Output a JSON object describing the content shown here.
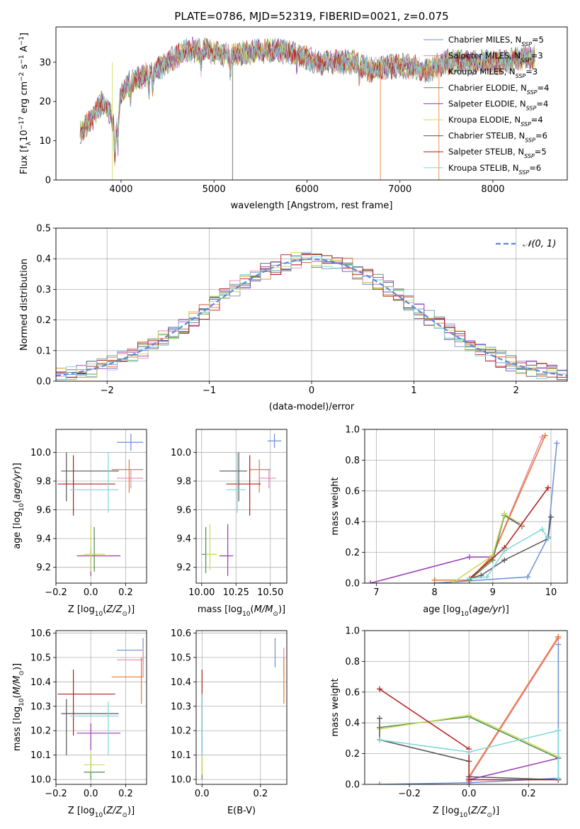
{
  "colors": {
    "Chabrier MILES": "#6a8fd8",
    "Salpeter MILES": "#e48ab0",
    "Kroupa MILES": "#e8772e",
    "Chabrier ELODIE": "#4d8a4d",
    "Salpeter ELODIE": "#9a3ab5",
    "Kroupa ELODIE": "#c7dd55",
    "Chabrier STELIB": "#555555",
    "Salpeter STELIB": "#b31b1b",
    "Kroupa STELIB": "#7fd7d7",
    "normal": "#5b8bd8"
  },
  "chart_data": [
    {
      "id": "spectrum",
      "type": "line",
      "title": "PLATE=0786, MJD=52319, FIBERID=0021, z=0.075",
      "xlabel": "wavelength [Angstrom, rest frame]",
      "ylabel": "Flux [fλ10⁻¹⁷ erg cm⁻² s⁻¹ A⁻¹]",
      "xlim": [
        3300,
        8800
      ],
      "ylim": [
        0,
        39
      ],
      "xticks": [
        "4000",
        "5000",
        "6000",
        "7000",
        "8000"
      ],
      "yticks": [
        "0",
        "10",
        "20",
        "30"
      ],
      "legend": "upper right",
      "series": [
        {
          "name": "Chabrier MILES, Nₛₛₚ=5",
          "label_main": "Chabrier MILES, N",
          "label_sub": "SSP",
          "label_end": "=5"
        },
        {
          "name": "Salpeter MILES, Nₛₛₚ=3",
          "label_main": "Salpeter MILES, N",
          "label_sub": "SSP",
          "label_end": "=3"
        },
        {
          "name": "Kroupa MILES, Nₛₛₚ=3",
          "label_main": "Kroupa MILES, N",
          "label_sub": "SSP",
          "label_end": "=3"
        },
        {
          "name": "Chabrier ELODIE, Nₛₛₚ=4",
          "label_main": "Chabrier ELODIE, N",
          "label_sub": "SSP",
          "label_end": "=4"
        },
        {
          "name": "Salpeter ELODIE, Nₛₛₚ=4",
          "label_main": "Salpeter ELODIE, N",
          "label_sub": "SSP",
          "label_end": "=4"
        },
        {
          "name": "Kroupa ELODIE, Nₛₛₚ=4",
          "label_main": "Kroupa ELODIE, N",
          "label_sub": "SSP",
          "label_end": "=4"
        },
        {
          "name": "Chabrier STELIB, Nₛₛₚ=6",
          "label_main": "Chabrier STELIB, N",
          "label_sub": "SSP",
          "label_end": "=6"
        },
        {
          "name": "Salpeter STELIB, Nₛₛₚ=5",
          "label_main": "Salpeter STELIB, N",
          "label_sub": "SSP",
          "label_end": "=5"
        },
        {
          "name": "Kroupa STELIB, Nₛₛₚ=6",
          "label_main": "Kroupa STELIB, N",
          "label_sub": "SSP",
          "label_end": "=6"
        }
      ],
      "shape": [
        [
          3560,
          12
        ],
        [
          3700,
          16
        ],
        [
          3800,
          20
        ],
        [
          3900,
          16
        ],
        [
          3950,
          12
        ],
        [
          4000,
          22
        ],
        [
          4100,
          25
        ],
        [
          4300,
          27
        ],
        [
          4500,
          30
        ],
        [
          4700,
          33
        ],
        [
          4900,
          33
        ],
        [
          5100,
          32
        ],
        [
          5300,
          32
        ],
        [
          5500,
          33
        ],
        [
          5700,
          33
        ],
        [
          5900,
          32
        ],
        [
          6100,
          30
        ],
        [
          6300,
          30
        ],
        [
          6500,
          30
        ],
        [
          6700,
          28
        ],
        [
          6900,
          29
        ],
        [
          7100,
          29
        ],
        [
          7300,
          28
        ],
        [
          7500,
          30
        ],
        [
          7700,
          30
        ],
        [
          7900,
          30
        ],
        [
          8100,
          30
        ],
        [
          8300,
          31
        ],
        [
          8450,
          31
        ]
      ]
    },
    {
      "id": "residuals",
      "type": "histogram",
      "xlabel": "(data-model)/error",
      "ylabel": "Normed distribution",
      "xlim": [
        -2.5,
        2.5
      ],
      "ylim": [
        0,
        0.5
      ],
      "xticks": [
        "−2",
        "−1",
        "0",
        "1",
        "2"
      ],
      "yticks": [
        "0.0",
        "0.1",
        "0.2",
        "0.3",
        "0.4",
        "0.5"
      ],
      "bin_width": 0.1,
      "legend": "upper right",
      "reference": {
        "name": "𝒩(0, 1)",
        "style": "dashed"
      },
      "series_count": 9
    },
    {
      "id": "z-age",
      "type": "errorbar",
      "xlabel": "Z [log₁₀(Z/Z⊙)]",
      "ylabel": "age  [log₁₀(age/yr)]",
      "xlim": [
        -0.2,
        0.32
      ],
      "ylim": [
        9.09,
        10.16
      ],
      "xticks": [
        "−0.2",
        "0.0",
        "0.2"
      ],
      "yticks": [
        "9.2",
        "9.4",
        "9.6",
        "9.8",
        "10.0"
      ],
      "points": [
        {
          "series": "Chabrier MILES",
          "x": 0.23,
          "xlo": 0.15,
          "xhi": 0.3,
          "y": 10.07,
          "ylo": 10.01,
          "yhi": 10.13
        },
        {
          "series": "Salpeter MILES",
          "x": 0.23,
          "xlo": 0.15,
          "xhi": 0.3,
          "y": 9.82,
          "ylo": 9.75,
          "yhi": 9.88
        },
        {
          "series": "Kroupa MILES",
          "x": 0.22,
          "xlo": 0.12,
          "xhi": 0.3,
          "y": 9.88,
          "ylo": 9.72,
          "yhi": 9.95
        },
        {
          "series": "Chabrier ELODIE",
          "x": 0.02,
          "xlo": -0.03,
          "xhi": 0.08,
          "y": 9.29,
          "ylo": 9.17,
          "yhi": 9.48
        },
        {
          "series": "Salpeter ELODIE",
          "x": 0.0,
          "xlo": -0.08,
          "xhi": 0.17,
          "y": 9.28,
          "ylo": 9.14,
          "yhi": 9.34
        },
        {
          "series": "Kroupa ELODIE",
          "x": 0.0,
          "xlo": -0.04,
          "xhi": 0.08,
          "y": 9.29,
          "ylo": 9.17,
          "yhi": 9.49
        },
        {
          "series": "Chabrier STELIB",
          "x": -0.14,
          "xlo": -0.17,
          "xhi": 0.16,
          "y": 9.87,
          "ylo": 9.66,
          "yhi": 10.0
        },
        {
          "series": "Salpeter STELIB",
          "x": -0.1,
          "xlo": -0.19,
          "xhi": 0.14,
          "y": 9.78,
          "ylo": 9.56,
          "yhi": 9.98
        },
        {
          "series": "Kroupa STELIB",
          "x": 0.1,
          "xlo": -0.12,
          "xhi": 0.16,
          "y": 9.74,
          "ylo": 9.58,
          "yhi": 10.0
        }
      ]
    },
    {
      "id": "mass-age",
      "type": "errorbar",
      "xlabel": "mass [log₁₀(M/M⊙)]",
      "xlim": [
        9.96,
        10.62
      ],
      "ylim": [
        9.09,
        10.16
      ],
      "xticks": [
        "10.00",
        "10.25",
        "10.50"
      ],
      "yticks": [
        "9.2",
        "9.4",
        "9.6",
        "9.8",
        "10.0"
      ],
      "points": [
        {
          "series": "Chabrier MILES",
          "x": 10.53,
          "xlo": 10.48,
          "xhi": 10.58,
          "y": 10.08,
          "ylo": 10.03,
          "yhi": 10.13
        },
        {
          "series": "Salpeter MILES",
          "x": 10.49,
          "xlo": 10.42,
          "xhi": 10.54,
          "y": 9.82,
          "ylo": 9.75,
          "yhi": 9.88
        },
        {
          "series": "Kroupa MILES",
          "x": 10.42,
          "xlo": 10.35,
          "xhi": 10.5,
          "y": 9.88,
          "ylo": 9.72,
          "yhi": 9.95
        },
        {
          "series": "Chabrier ELODIE",
          "x": 10.03,
          "xlo": 10.0,
          "xhi": 10.1,
          "y": 9.29,
          "ylo": 9.16,
          "yhi": 9.48
        },
        {
          "series": "Salpeter ELODIE",
          "x": 10.19,
          "xlo": 10.13,
          "xhi": 10.23,
          "y": 9.28,
          "ylo": 9.14,
          "yhi": 9.5
        },
        {
          "series": "Kroupa ELODIE",
          "x": 10.06,
          "xlo": 10.03,
          "xhi": 10.11,
          "y": 9.29,
          "ylo": 9.18,
          "yhi": 9.5
        },
        {
          "series": "Chabrier STELIB",
          "x": 10.27,
          "xlo": 10.13,
          "xhi": 10.33,
          "y": 9.87,
          "ylo": 9.66,
          "yhi": 10.0
        },
        {
          "series": "Salpeter STELIB",
          "x": 10.35,
          "xlo": 10.18,
          "xhi": 10.43,
          "y": 9.78,
          "ylo": 9.56,
          "yhi": 9.98
        },
        {
          "series": "Kroupa STELIB",
          "x": 10.26,
          "xlo": 10.18,
          "xhi": 10.32,
          "y": 9.74,
          "ylo": 9.58,
          "yhi": 10.0
        }
      ]
    },
    {
      "id": "age-weight",
      "type": "line",
      "xlabel": "age  [log₁₀(age/yr)]",
      "ylabel": "mass weight",
      "xlim": [
        6.8,
        10.28
      ],
      "ylim": [
        0,
        1
      ],
      "xticks": [
        "7",
        "8",
        "9",
        "10"
      ],
      "yticks": [
        "0.0",
        "0.2",
        "0.4",
        "0.6",
        "0.8",
        "1.0"
      ],
      "series": [
        {
          "name": "Chabrier MILES",
          "x": [
            8.0,
            9.6,
            9.95,
            10.1
          ],
          "y": [
            0.0,
            0.04,
            0.3,
            0.91
          ]
        },
        {
          "name": "Salpeter MILES",
          "x": [
            8.0,
            8.6,
            9.0,
            9.85
          ],
          "y": [
            0.02,
            0.02,
            0.18,
            0.95
          ]
        },
        {
          "name": "Kroupa MILES",
          "x": [
            8.0,
            8.6,
            9.0,
            9.9
          ],
          "y": [
            0.02,
            0.02,
            0.18,
            0.96
          ]
        },
        {
          "name": "Chabrier ELODIE",
          "x": [
            8.6,
            9.0,
            9.2,
            9.5
          ],
          "y": [
            0.02,
            0.15,
            0.44,
            0.37
          ]
        },
        {
          "name": "Salpeter ELODIE",
          "x": [
            6.9,
            8.6,
            9.0,
            9.2,
            9.5
          ],
          "y": [
            0.0,
            0.17,
            0.17,
            0.45,
            0.37
          ]
        },
        {
          "name": "Kroupa ELODIE",
          "x": [
            8.3,
            9.0,
            9.2,
            9.5
          ],
          "y": [
            0.0,
            0.18,
            0.45,
            0.38
          ]
        },
        {
          "name": "Chabrier STELIB",
          "x": [
            8.6,
            8.8,
            9.2,
            9.95,
            10.0
          ],
          "y": [
            0.03,
            0.05,
            0.15,
            0.29,
            0.43
          ]
        },
        {
          "name": "Salpeter STELIB",
          "x": [
            8.6,
            9.2,
            9.95
          ],
          "y": [
            0.03,
            0.23,
            0.62
          ]
        },
        {
          "name": "Kroupa STELIB",
          "x": [
            8.6,
            8.9,
            9.2,
            9.85,
            9.95
          ],
          "y": [
            0.03,
            0.04,
            0.21,
            0.35,
            0.29
          ]
        }
      ]
    },
    {
      "id": "z-mass",
      "type": "errorbar",
      "xlabel": "Z [log₁₀(Z/Z⊙)]",
      "ylabel": "mass [log₁₀(M/M⊙)]",
      "xlim": [
        -0.2,
        0.32
      ],
      "ylim": [
        9.98,
        10.61
      ],
      "xticks": [
        "−0.2",
        "0.0",
        "0.2"
      ],
      "yticks": [
        "10.0",
        "10.1",
        "10.2",
        "10.3",
        "10.4",
        "10.5",
        "10.6"
      ],
      "points": [
        {
          "series": "Chabrier MILES",
          "x": 0.3,
          "xlo": 0.15,
          "xhi": 0.3,
          "y": 10.53,
          "ylo": 10.47,
          "yhi": 10.58
        },
        {
          "series": "Salpeter MILES",
          "x": 0.3,
          "xlo": 0.15,
          "xhi": 0.3,
          "y": 10.49,
          "ylo": 10.42,
          "yhi": 10.54
        },
        {
          "series": "Kroupa MILES",
          "x": 0.29,
          "xlo": 0.12,
          "xhi": 0.3,
          "y": 10.42,
          "ylo": 10.31,
          "yhi": 10.5
        },
        {
          "series": "Chabrier ELODIE",
          "x": 0.0,
          "xlo": -0.04,
          "xhi": 0.08,
          "y": 10.03,
          "ylo": 10.0,
          "yhi": 10.1
        },
        {
          "series": "Salpeter ELODIE",
          "x": 0.0,
          "xlo": -0.08,
          "xhi": 0.17,
          "y": 10.19,
          "ylo": 10.12,
          "yhi": 10.23
        },
        {
          "series": "Kroupa ELODIE",
          "x": 0.0,
          "xlo": -0.04,
          "xhi": 0.08,
          "y": 10.06,
          "ylo": 10.03,
          "yhi": 10.11
        },
        {
          "series": "Chabrier STELIB",
          "x": -0.14,
          "xlo": -0.17,
          "xhi": 0.16,
          "y": 10.27,
          "ylo": 10.1,
          "yhi": 10.33
        },
        {
          "series": "Salpeter STELIB",
          "x": -0.1,
          "xlo": -0.19,
          "xhi": 0.14,
          "y": 10.35,
          "ylo": 10.18,
          "yhi": 10.45
        },
        {
          "series": "Kroupa STELIB",
          "x": 0.1,
          "xlo": -0.12,
          "xhi": 0.16,
          "y": 10.26,
          "ylo": 10.1,
          "yhi": 10.32
        }
      ]
    },
    {
      "id": "ebv-mass",
      "type": "errorbar",
      "xlabel": "E(B-V)",
      "xlim": [
        -0.02,
        0.29
      ],
      "ylim": [
        9.98,
        10.61
      ],
      "xticks": [
        "0.0",
        "0.2"
      ],
      "yticks": [
        "10.0",
        "10.1",
        "10.2",
        "10.3",
        "10.4",
        "10.5",
        "10.6"
      ],
      "points": [
        {
          "series": "Chabrier MILES",
          "x": 0.25,
          "y": 10.53,
          "ylo": 10.46,
          "yhi": 10.58
        },
        {
          "series": "Salpeter MILES",
          "x": 0.28,
          "y": 10.49,
          "ylo": 10.42,
          "yhi": 10.54
        },
        {
          "series": "Kroupa MILES",
          "x": 0.28,
          "y": 10.42,
          "ylo": 10.31,
          "yhi": 10.5
        },
        {
          "series": "Chabrier ELODIE",
          "x": 0.0,
          "y": 10.03,
          "ylo": 10.0,
          "yhi": 10.1
        },
        {
          "series": "Salpeter ELODIE",
          "x": 0.0,
          "y": 10.19,
          "ylo": 10.12,
          "yhi": 10.23
        },
        {
          "series": "Kroupa ELODIE",
          "x": 0.0,
          "y": 10.06,
          "ylo": 10.02,
          "yhi": 10.11
        },
        {
          "series": "Chabrier STELIB",
          "x": 0.0,
          "y": 10.27,
          "ylo": 10.1,
          "yhi": 10.33
        },
        {
          "series": "Salpeter STELIB",
          "x": 0.0,
          "y": 10.35,
          "ylo": 10.2,
          "yhi": 10.45
        },
        {
          "series": "Kroupa STELIB",
          "x": 0.0,
          "y": 10.26,
          "ylo": 10.1,
          "yhi": 10.35
        }
      ]
    },
    {
      "id": "z-weight",
      "type": "line",
      "xlabel": "Z [log₁₀(Z/Z⊙)]",
      "ylabel": "mass weight",
      "xlim": [
        -0.35,
        0.33
      ],
      "ylim": [
        0,
        1
      ],
      "xticks": [
        "−0.2",
        "0.0",
        "0.2"
      ],
      "yticks": [
        "0.0",
        "0.2",
        "0.4",
        "0.6",
        "0.8",
        "1.0"
      ],
      "series": [
        {
          "name": "Chabrier MILES",
          "x": [
            -0.3,
            0.0,
            0.3,
            0.3
          ],
          "y": [
            0.0,
            0.01,
            0.04,
            0.91
          ]
        },
        {
          "name": "Salpeter MILES",
          "x": [
            0.0,
            0.0,
            0.3
          ],
          "y": [
            0.02,
            0.04,
            0.95
          ]
        },
        {
          "name": "Kroupa MILES",
          "x": [
            0.0,
            0.0,
            0.3
          ],
          "y": [
            0.02,
            0.05,
            0.96
          ]
        },
        {
          "name": "Chabrier ELODIE",
          "x": [
            -0.3,
            0.0,
            0.3
          ],
          "y": [
            0.37,
            0.44,
            0.17
          ]
        },
        {
          "name": "Salpeter ELODIE",
          "x": [
            0.0,
            0.0,
            0.3
          ],
          "y": [
            0.0,
            0.03,
            0.17
          ]
        },
        {
          "name": "Kroupa ELODIE",
          "x": [
            -0.3,
            0.0,
            0.3
          ],
          "y": [
            0.36,
            0.45,
            0.18
          ]
        },
        {
          "name": "Chabrier STELIB",
          "x": [
            -0.3,
            -0.3,
            0.0,
            0.0,
            0.3
          ],
          "y": [
            0.43,
            0.29,
            0.15,
            0.05,
            0.03
          ]
        },
        {
          "name": "Salpeter STELIB",
          "x": [
            -0.3,
            0.0,
            0.0,
            0.3
          ],
          "y": [
            0.62,
            0.23,
            0.03,
            0.03
          ]
        },
        {
          "name": "Kroupa STELIB",
          "x": [
            -0.3,
            0.0,
            0.3,
            0.3
          ],
          "y": [
            0.29,
            0.21,
            0.35,
            0.04
          ]
        }
      ]
    }
  ]
}
